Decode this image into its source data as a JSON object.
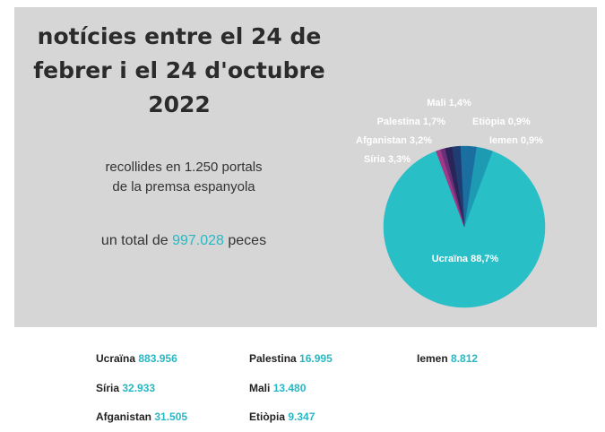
{
  "header": {
    "title_lines": [
      "notícies entre el 24 de",
      "febrer i el 24 d'octubre",
      "2022"
    ],
    "subtitle_lines": [
      "recollides en 1.250 portals",
      "de la premsa espanyola"
    ],
    "total_prefix": "un total de ",
    "total_value": "997.028",
    "total_suffix": " peces"
  },
  "colors": {
    "panel_bg": "#d6d6d6",
    "accent": "#29b8c3"
  },
  "chart_data": {
    "type": "pie",
    "slices": [
      {
        "label": "Ucraïna 88,7%",
        "value": 88.7,
        "color": "#29bfc6"
      },
      {
        "label": "Síria 3,3%",
        "value": 3.3,
        "color": "#1d9bb3"
      },
      {
        "label": "Afganistan 3,2%",
        "value": 3.2,
        "color": "#1a6fa0"
      },
      {
        "label": "Palestina 1,7%",
        "value": 1.7,
        "color": "#1f3d73"
      },
      {
        "label": "Mali 1,4%",
        "value": 1.4,
        "color": "#2a2559"
      },
      {
        "label": "Etiòpia 0,9%",
        "value": 0.9,
        "color": "#6a2f7a"
      },
      {
        "label": "Iemen 0,9%",
        "value": 0.9,
        "color": "#a03a86"
      }
    ]
  },
  "legend": [
    {
      "name": "Ucraïna",
      "value": "883.956"
    },
    {
      "name": "Síria",
      "value": "32.933"
    },
    {
      "name": "Afganistan",
      "value": "31.505"
    },
    {
      "name": "Palestina",
      "value": "16.995"
    },
    {
      "name": "Mali",
      "value": "13.480"
    },
    {
      "name": "Etiòpia",
      "value": "9.347"
    },
    {
      "name": "Iemen",
      "value": "8.812"
    }
  ]
}
